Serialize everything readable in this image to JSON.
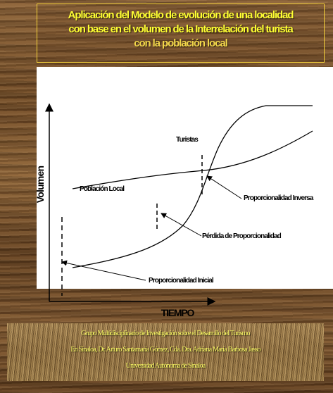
{
  "title": {
    "line1": "Aplicación del Modelo de evolución de una localidad",
    "line2": "con base en el volumen de la Interrelación del turista",
    "line3": "con la población local"
  },
  "diagram": {
    "y_axis_label": "Volumen",
    "x_axis_label": "TIEMPO",
    "curves": {
      "tourists": "Turistas",
      "local_population": "Población Local"
    },
    "annotations": {
      "inverse": "Proporcionalidad Inversa",
      "loss": "Pérdida de Proporcionalidad",
      "initial": "Proporcionalidad Inicial"
    }
  },
  "footer": {
    "line1": "Grupo Multidisciplinario de Investigación sobre el Desarrollo del Turismo",
    "line2": "En Sinaloa, Dr. Arturo Santamaría Gómez, Cda. Dra. Adriana María Barbosa Jasso",
    "line3": "Universidad Autónoma de Sinaloa"
  },
  "colors": {
    "title_text": "#ffff33",
    "footer_text": "#ffff66",
    "frame_border": "#f4d23a",
    "background": "wood-texture"
  }
}
